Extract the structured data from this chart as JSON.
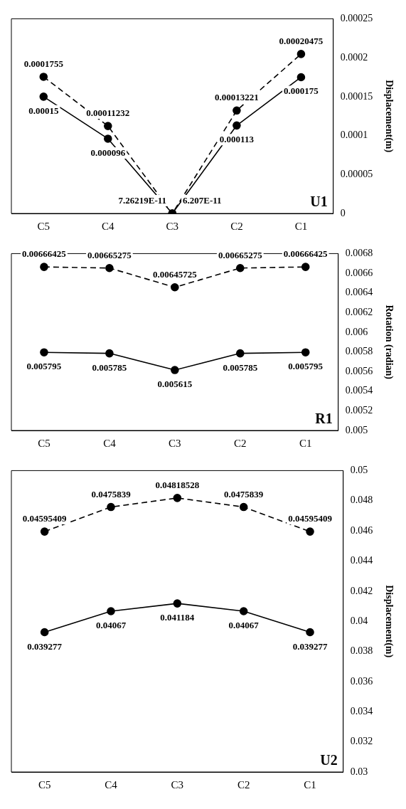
{
  "chart_data": [
    {
      "type": "line",
      "title": "U1",
      "ylabel": "Displacement(m)",
      "categories": [
        "C5",
        "C4",
        "C3",
        "C2",
        "C1"
      ],
      "ylim": [
        0,
        0.00025
      ],
      "yticks": [
        0,
        {
          "value": 5e-05,
          "label": "0.00005"
        },
        0.0001,
        0.00015,
        0.0002,
        0.00025
      ],
      "grid": false,
      "legend": false,
      "marker": "circle",
      "data_labels": true,
      "series": [
        {
          "color": "#000000",
          "line_style": "dashed",
          "values": [
            0.0001755,
            0.00011232,
            7.26219e-11,
            0.00013221,
            0.00020475
          ],
          "value_labels": [
            "0.0001755",
            "0.00011232",
            "7.26219E-11",
            "0.00013221",
            "0.00020475"
          ]
        },
        {
          "color": "#000000",
          "line_style": "solid",
          "values": [
            0.00015,
            9.6e-05,
            6.207e-11,
            0.000113,
            0.000175
          ],
          "value_labels": [
            "0.00015",
            "0.000096",
            "6.207E-11",
            "0.000113",
            "0.000175"
          ]
        }
      ]
    },
    {
      "type": "line",
      "title": "R1",
      "ylabel": "Rotation (radian)",
      "categories": [
        "C5",
        "C4",
        "C3",
        "C2",
        "C1"
      ],
      "ylim": [
        0.005,
        0.0068
      ],
      "yticks": [
        0.005,
        0.0052,
        0.0054,
        0.0056,
        0.0058,
        0.006,
        0.0062,
        0.0064,
        0.0066,
        0.0068
      ],
      "grid": false,
      "legend": false,
      "marker": "circle",
      "data_labels": true,
      "series": [
        {
          "color": "#000000",
          "line_style": "dashed",
          "values": [
            0.00666425,
            0.00665275,
            0.00645725,
            0.00665275,
            0.00666425
          ]
        },
        {
          "color": "#000000",
          "line_style": "solid",
          "values": [
            0.005795,
            0.005785,
            0.005615,
            0.005785,
            0.005795
          ]
        }
      ]
    },
    {
      "type": "line",
      "title": "U2",
      "ylabel": "Displacement(m)",
      "categories": [
        "C5",
        "C4",
        "C3",
        "C2",
        "C1"
      ],
      "ylim": [
        0.03,
        0.05
      ],
      "yticks": [
        0.03,
        0.032,
        0.034,
        0.036,
        0.038,
        0.04,
        0.042,
        0.044,
        0.046,
        0.048,
        0.05
      ],
      "grid": false,
      "legend": false,
      "marker": "circle",
      "data_labels": true,
      "series": [
        {
          "color": "#000000",
          "line_style": "dashed",
          "values": [
            0.04595409,
            0.0475839,
            0.04818528,
            0.0475839,
            0.04595409
          ]
        },
        {
          "color": "#000000",
          "line_style": "solid",
          "values": [
            0.039277,
            0.04067,
            0.041184,
            0.04067,
            0.039277
          ]
        }
      ]
    }
  ]
}
